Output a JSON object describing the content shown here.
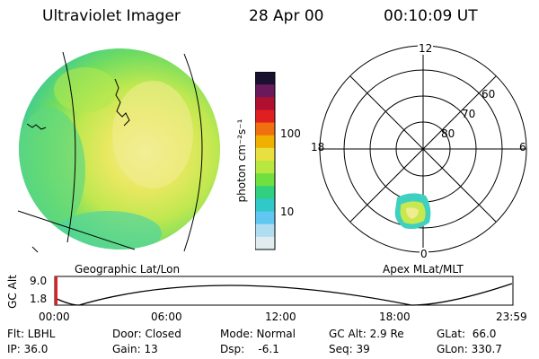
{
  "header": {
    "title": "Ultraviolet Imager",
    "date": "28 Apr 00",
    "time": "00:10:09 UT"
  },
  "colorbar": {
    "unit_label": "photon cm⁻²s⁻¹",
    "ticks": [
      "100",
      "10"
    ],
    "colors": [
      "#1a1030",
      "#6a1a5a",
      "#b01030",
      "#e02020",
      "#f07010",
      "#f0b000",
      "#e8e040",
      "#b8e840",
      "#70e040",
      "#30d080",
      "#30c8c8",
      "#60c8f0",
      "#b0dcf0",
      "#e0ecf0"
    ]
  },
  "left_map": {
    "projection_label": "Geographic Lat/Lon"
  },
  "polar": {
    "projection_label": "Apex MLat/MLT",
    "mlt_labels": {
      "top": "12",
      "left": "18",
      "right": "6",
      "bottom": "0"
    },
    "lat_labels": [
      "60",
      "70",
      "80"
    ]
  },
  "altitude_plot": {
    "ylabel": "GC Alt",
    "y_ticks": [
      "9.0",
      "1.8"
    ],
    "x_ticks": [
      "00:00",
      "06:00",
      "12:00",
      "18:00",
      "23:59"
    ]
  },
  "status": {
    "row1": {
      "flt": "Flt: LBHL",
      "door": "Door: Closed",
      "mode": "Mode: Normal",
      "gcalt": "GC Alt: 2.9 Re",
      "glat": "GLat:  66.0"
    },
    "row2": {
      "ip": "IP: 36.0",
      "gain": "Gain: 13",
      "dsp": "Dsp:    -6.1",
      "seq": "Seq: 39",
      "glon": "GLon: 330.7"
    }
  }
}
